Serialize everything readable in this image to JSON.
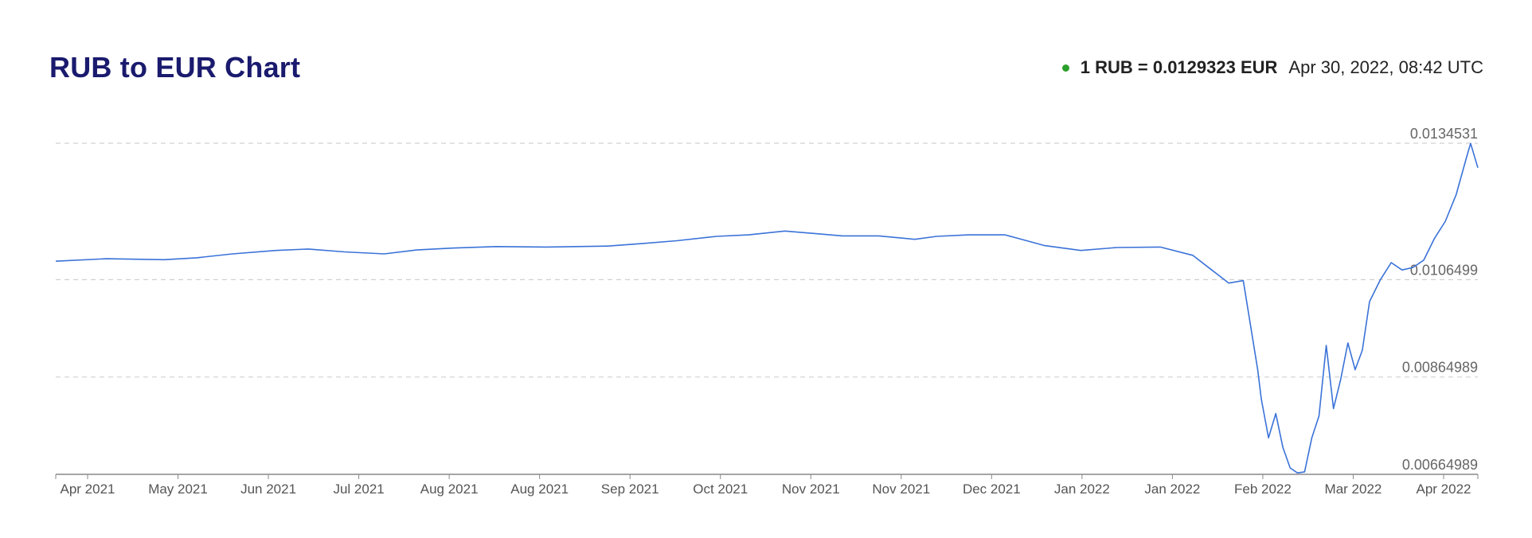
{
  "header": {
    "title": "RUB to EUR Chart",
    "rate_text": "1 RUB = 0.0129323 EUR",
    "timestamp": "Apr 30, 2022, 08:42 UTC",
    "status_color": "#2ca02c"
  },
  "chart_data": {
    "type": "line",
    "title": "RUB to EUR Chart",
    "xlabel": "",
    "ylabel": "",
    "line_color": "#3a72d8",
    "grid": true,
    "grid_style": "dashed horizontal",
    "x_ticks": [
      "Apr 2021",
      "May 2021",
      "Jun 2021",
      "Jul 2021",
      "Aug 2021",
      "Aug 2021",
      "Sep 2021",
      "Oct 2021",
      "Nov 2021",
      "Nov 2021",
      "Dec 2021",
      "Jan 2022",
      "Jan 2022",
      "Feb 2022",
      "Mar 2022",
      "Apr 2022"
    ],
    "y_ticks": [
      "0.0134531",
      "0.0106499",
      "0.00864989",
      "0.00664989"
    ],
    "ylim": [
      0.00664989,
      0.0134531
    ],
    "xlim": [
      "2021-04-01",
      "2022-04-30"
    ],
    "series": [
      {
        "x": [
          "2021-04-01",
          "2021-04-15",
          "2021-05-01",
          "2021-05-10",
          "2021-05-20",
          "2021-06-01",
          "2021-06-10",
          "2021-06-20",
          "2021-07-01",
          "2021-07-10",
          "2021-07-20",
          "2021-08-01",
          "2021-08-15",
          "2021-09-01",
          "2021-09-10",
          "2021-09-20",
          "2021-10-01",
          "2021-10-10",
          "2021-10-20",
          "2021-10-28",
          "2021-11-05",
          "2021-11-15",
          "2021-11-25",
          "2021-12-01",
          "2021-12-10",
          "2021-12-20",
          "2021-12-31",
          "2022-01-10",
          "2022-01-20",
          "2022-02-01",
          "2022-02-10",
          "2022-02-20",
          "2022-02-24",
          "2022-02-28",
          "2022-03-01",
          "2022-03-03",
          "2022-03-05",
          "2022-03-07",
          "2022-03-09",
          "2022-03-11",
          "2022-03-13",
          "2022-03-15",
          "2022-03-17",
          "2022-03-19",
          "2022-03-21",
          "2022-03-23",
          "2022-03-25",
          "2022-03-27",
          "2022-03-29",
          "2022-03-31",
          "2022-04-03",
          "2022-04-06",
          "2022-04-09",
          "2022-04-12",
          "2022-04-15",
          "2022-04-18",
          "2022-04-21",
          "2022-04-24",
          "2022-04-27",
          "2022-04-28",
          "2022-04-30"
        ],
        "values": [
          0.01103,
          0.01108,
          0.01106,
          0.0111,
          0.01118,
          0.01125,
          0.01128,
          0.01122,
          0.01118,
          0.01126,
          0.0113,
          0.01133,
          0.01132,
          0.01134,
          0.01139,
          0.01145,
          0.01154,
          0.01157,
          0.01165,
          0.0116,
          0.01155,
          0.01155,
          0.01148,
          0.01154,
          0.01157,
          0.01157,
          0.01135,
          0.01125,
          0.01131,
          0.01132,
          0.01115,
          0.01058,
          0.01063,
          0.0088,
          0.0082,
          0.0074,
          0.0079,
          0.0072,
          0.00678,
          0.00668,
          0.0067,
          0.0074,
          0.00785,
          0.0093,
          0.008,
          0.0086,
          0.00935,
          0.0088,
          0.0092,
          0.0102,
          0.01065,
          0.011,
          0.01085,
          0.0109,
          0.01105,
          0.0115,
          0.01185,
          0.0124,
          0.0132,
          0.01345,
          0.01295
        ]
      }
    ]
  }
}
